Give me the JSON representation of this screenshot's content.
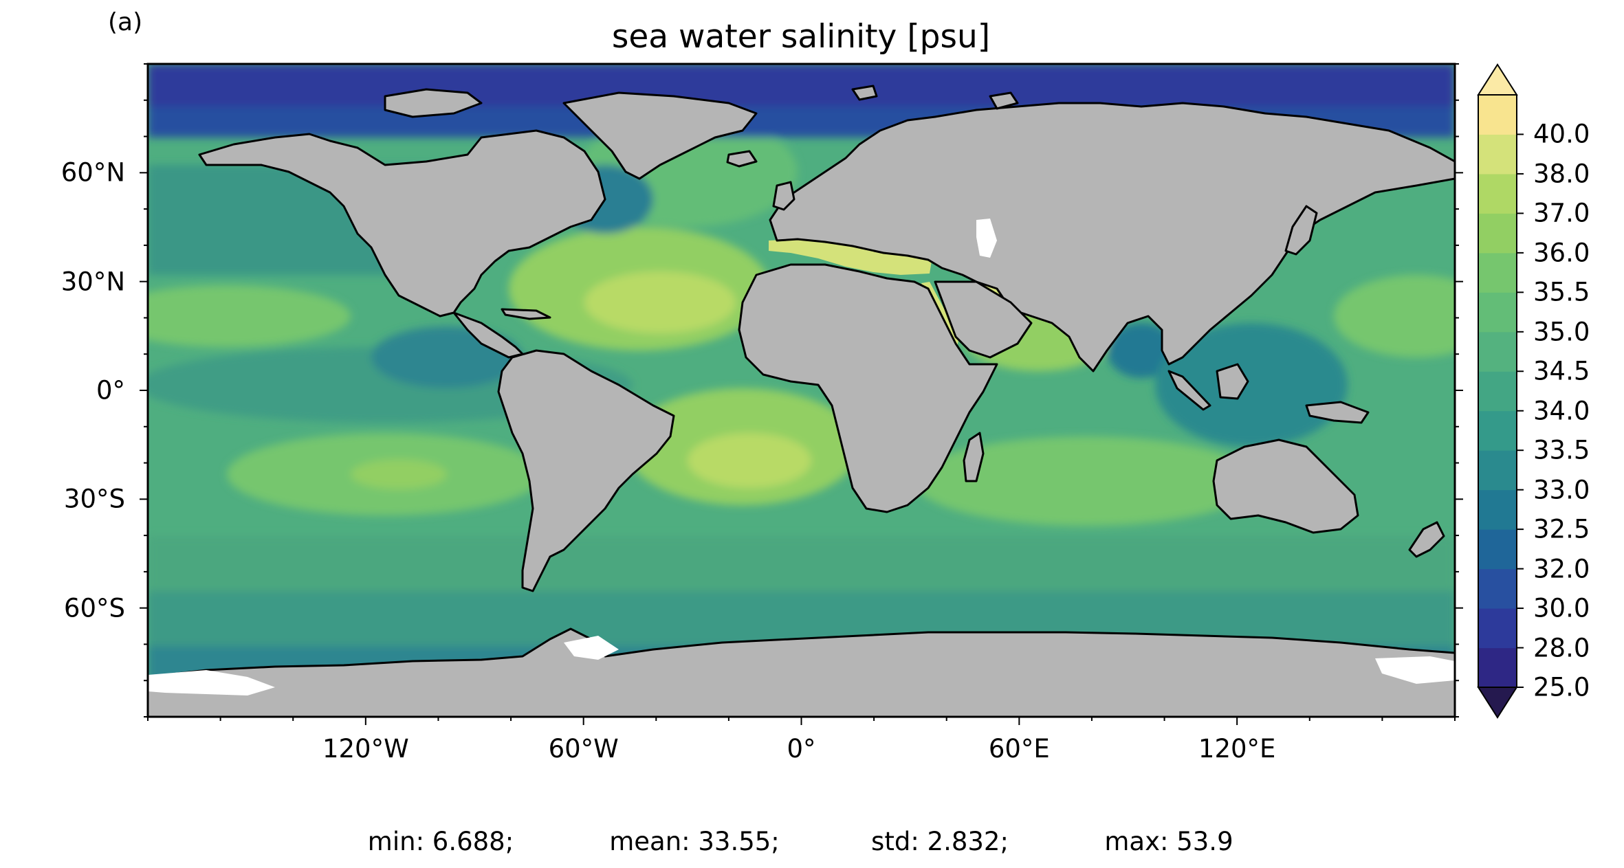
{
  "panel_label": "(a)",
  "title": "sea water salinity [psu]",
  "lat_ticks": [
    {
      "value": 60,
      "label": "60°N"
    },
    {
      "value": 30,
      "label": "30°N"
    },
    {
      "value": 0,
      "label": "0°"
    },
    {
      "value": -30,
      "label": "30°S"
    },
    {
      "value": -60,
      "label": "60°S"
    }
  ],
  "lon_ticks": [
    {
      "value": -120,
      "label": "120°W"
    },
    {
      "value": -60,
      "label": "60°W"
    },
    {
      "value": 0,
      "label": "0°"
    },
    {
      "value": 60,
      "label": "60°E"
    },
    {
      "value": 120,
      "label": "120°E"
    }
  ],
  "colorbar": {
    "levels": [
      "25.0",
      "28.0",
      "30.0",
      "32.0",
      "32.5",
      "33.0",
      "33.5",
      "34.0",
      "34.5",
      "35.0",
      "35.5",
      "36.0",
      "37.0",
      "38.0",
      "40.0"
    ],
    "colors": [
      "#2e2785",
      "#2d3a9b",
      "#2850a0",
      "#1f6699",
      "#217993",
      "#2a8a8e",
      "#349a8a",
      "#43a684",
      "#54b27f",
      "#63bd77",
      "#76c66e",
      "#92cf63",
      "#afd865",
      "#d4e27a",
      "#f8e48f"
    ],
    "extend": "both",
    "under_color": "#25194f",
    "over_color": "#fbeaa6"
  },
  "map_colors": {
    "land": "#b5b5b5",
    "ice": "#ffffff",
    "coast": "#000000"
  },
  "stats": {
    "min": "min: 6.688;",
    "mean": "mean: 33.55;",
    "std": "std: 2.832;",
    "max": "max: 53.9"
  }
}
